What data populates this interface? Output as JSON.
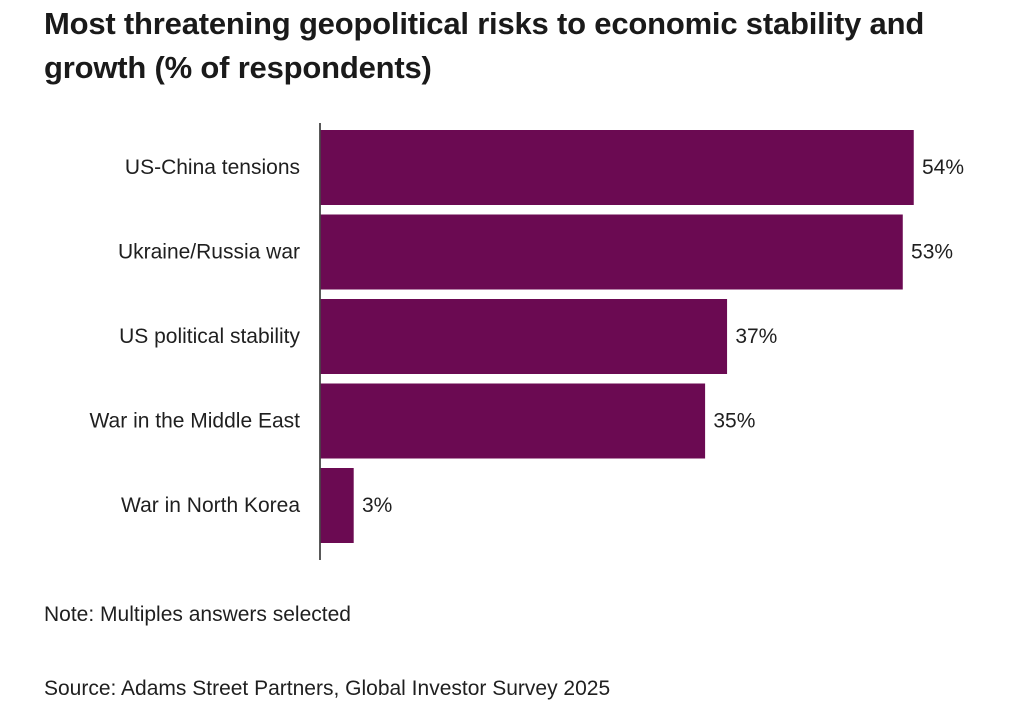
{
  "chart_data": {
    "type": "bar",
    "orientation": "horizontal",
    "title": "Most threatening geopolitical risks to economic stability and growth (% of respondents)",
    "categories": [
      "US-China tensions",
      "Ukraine/Russia war",
      "US political stability",
      "War in the Middle East",
      "War in North Korea"
    ],
    "values": [
      54,
      53,
      37,
      35,
      3
    ],
    "value_labels": [
      "54%",
      "53%",
      "37%",
      "35%",
      "3%"
    ],
    "unit": "%",
    "xlim": [
      0,
      54
    ],
    "grid": false,
    "legend": "none",
    "bar_color": "#6b0a52"
  },
  "note": "Note: Multiples answers selected",
  "source": "Source: Adams Street Partners, Global Investor Survey 2025"
}
